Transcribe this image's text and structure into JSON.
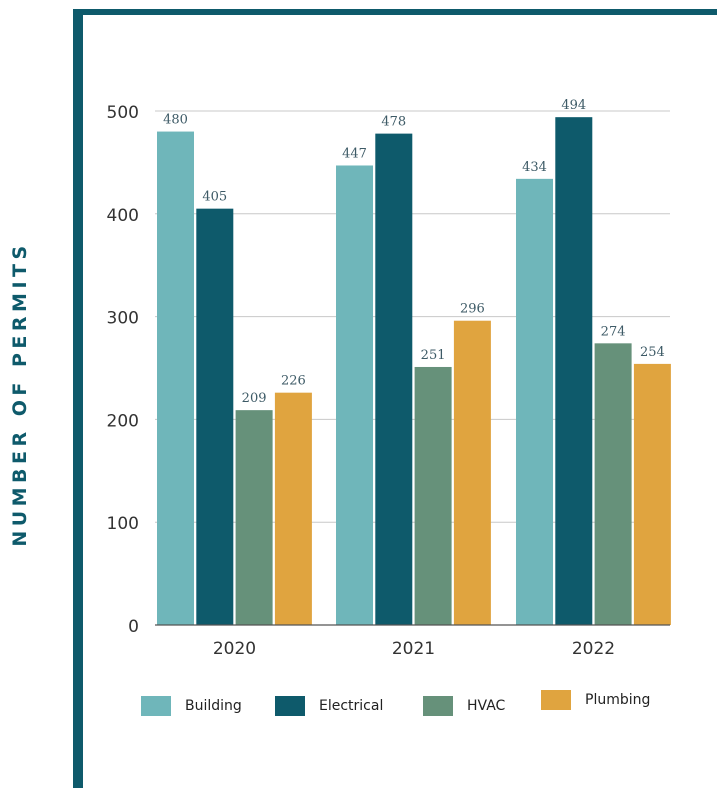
{
  "chart_data": {
    "type": "bar",
    "title": "",
    "xlabel": "",
    "ylabel": "NUMBER OF PERMITS",
    "categories": [
      "2020",
      "2021",
      "2022"
    ],
    "ylim": [
      0,
      500
    ],
    "yticks": [
      "0",
      "100",
      "200",
      "300",
      "400",
      "500"
    ],
    "grid": true,
    "legend_position": "bottom",
    "series": [
      {
        "name": "Building",
        "color": "#6fb6ba",
        "values": [
          480,
          447,
          434
        ],
        "labels": [
          "480",
          "447",
          "434"
        ]
      },
      {
        "name": "Electrical",
        "color": "#0e5a6b",
        "values": [
          405,
          478,
          494
        ],
        "labels": [
          "405",
          "478",
          "494"
        ]
      },
      {
        "name": "HVAC",
        "color": "#66917a",
        "values": [
          209,
          251,
          274
        ],
        "labels": [
          "209",
          "251",
          "274"
        ]
      },
      {
        "name": "Plumbing",
        "color": "#e0a43f",
        "values": [
          226,
          296,
          254
        ],
        "labels": [
          "226",
          "296",
          "254"
        ]
      }
    ]
  },
  "colors": {
    "frame": "#0e5a6b",
    "grid": "#c8c8c8",
    "axis_text": "#333333",
    "data_label": "#3d5a66"
  }
}
